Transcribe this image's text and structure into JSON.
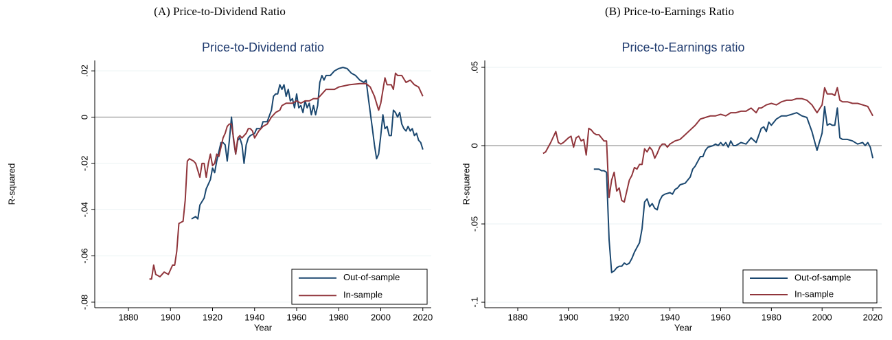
{
  "chart_data": [
    {
      "type": "line",
      "caption": "(A) Price-to-Dividend Ratio",
      "title": "Price-to-Dividend ratio",
      "x_label": "Year",
      "y_label": "R-squared",
      "grid": true,
      "refline": 0,
      "legend": "lower right",
      "xlim": [
        1864,
        2024
      ],
      "xticks": [
        1880,
        1900,
        1920,
        1940,
        1960,
        1980,
        2000,
        2020
      ],
      "ylim": [
        -0.0824,
        0.0245
      ],
      "yticks": [
        {
          "value": -0.08,
          "label": "-.08"
        },
        {
          "value": -0.06,
          "label": "-.06"
        },
        {
          "value": -0.04,
          "label": "-.04"
        },
        {
          "value": -0.02,
          "label": "-.02"
        },
        0,
        {
          "value": 0.02,
          "label": ".02"
        }
      ],
      "series": [
        {
          "name": "Out-of-sample",
          "color": "#1a476f",
          "x": [
            1910,
            1912,
            1913,
            1914,
            1916,
            1917,
            1918,
            1919,
            1920,
            1921,
            1922,
            1923,
            1924,
            1925,
            1926,
            1927,
            1928,
            1929,
            1930,
            1931,
            1932,
            1933,
            1934,
            1935,
            1936,
            1937,
            1938,
            1940,
            1941,
            1943,
            1944,
            1946,
            1948,
            1949,
            1950,
            1951,
            1952,
            1953,
            1954,
            1955,
            1956,
            1957,
            1958,
            1959,
            1960,
            1961,
            1962,
            1963,
            1964,
            1965,
            1966,
            1967,
            1968,
            1969,
            1970,
            1971,
            1972,
            1973,
            1974,
            1976,
            1978,
            1980,
            1982,
            1984,
            1986,
            1988,
            1990,
            1992,
            1993,
            1994,
            1995,
            1996,
            1997,
            1998,
            1999,
            2000,
            2001,
            2002,
            2003,
            2004,
            2005,
            2006,
            2007,
            2008,
            2009,
            2010,
            2011,
            2012,
            2013,
            2014,
            2015,
            2016,
            2017,
            2018,
            2019,
            2020
          ],
          "values": [
            -0.044,
            -0.043,
            -0.044,
            -0.038,
            -0.035,
            -0.031,
            -0.029,
            -0.027,
            -0.022,
            -0.024,
            -0.019,
            -0.015,
            -0.011,
            -0.011,
            -0.012,
            -0.019,
            -0.01,
            0.0,
            -0.01,
            -0.016,
            -0.01,
            -0.009,
            -0.012,
            -0.02,
            -0.012,
            -0.009,
            -0.008,
            -0.007,
            -0.005,
            -0.005,
            -0.002,
            -0.002,
            0.003,
            0.009,
            0.01,
            0.01,
            0.014,
            0.012,
            0.014,
            0.009,
            0.012,
            0.007,
            0.008,
            0.004,
            0.01,
            0.004,
            0.005,
            0.002,
            0.007,
            0.004,
            0.006,
            0.001,
            0.005,
            0.001,
            0.005,
            0.015,
            0.018,
            0.016,
            0.018,
            0.018,
            0.02,
            0.021,
            0.0215,
            0.021,
            0.019,
            0.018,
            0.016,
            0.015,
            0.016,
            0.009,
            0.002,
            -0.005,
            -0.012,
            -0.018,
            -0.016,
            -0.008,
            0.001,
            -0.005,
            -0.004,
            -0.008,
            -0.008,
            0.003,
            0.002,
            0.0,
            0.002,
            -0.003,
            -0.005,
            -0.006,
            -0.004,
            -0.006,
            -0.005,
            -0.008,
            -0.007,
            -0.01,
            -0.011,
            -0.014
          ]
        },
        {
          "name": "In-sample",
          "color": "#90353b",
          "x": [
            1890,
            1891,
            1892,
            1893,
            1895,
            1897,
            1899,
            1901,
            1902,
            1903,
            1904,
            1906,
            1907,
            1908,
            1909,
            1911,
            1912,
            1914,
            1915,
            1916,
            1917,
            1918,
            1919,
            1920,
            1921,
            1922,
            1923,
            1924,
            1925,
            1926,
            1927,
            1928,
            1929,
            1930,
            1931,
            1932,
            1933,
            1934,
            1936,
            1937,
            1938,
            1939,
            1940,
            1942,
            1944,
            1946,
            1948,
            1950,
            1952,
            1953,
            1955,
            1958,
            1960,
            1962,
            1964,
            1966,
            1968,
            1970,
            1972,
            1974,
            1978,
            1980,
            1985,
            1990,
            1993,
            1995,
            1997,
            1999,
            2000,
            2002,
            2003,
            2005,
            2006,
            2007,
            2008,
            2010,
            2012,
            2014,
            2016,
            2018,
            2020
          ],
          "values": [
            -0.07,
            -0.07,
            -0.064,
            -0.068,
            -0.069,
            -0.067,
            -0.068,
            -0.064,
            -0.064,
            -0.058,
            -0.046,
            -0.045,
            -0.036,
            -0.019,
            -0.018,
            -0.019,
            -0.02,
            -0.026,
            -0.02,
            -0.02,
            -0.026,
            -0.02,
            -0.016,
            -0.021,
            -0.02,
            -0.016,
            -0.017,
            -0.013,
            -0.009,
            -0.007,
            -0.004,
            -0.003,
            -0.003,
            -0.009,
            -0.016,
            -0.009,
            -0.008,
            -0.009,
            -0.007,
            -0.005,
            -0.005,
            -0.006,
            -0.009,
            -0.006,
            -0.004,
            -0.003,
            0.0,
            0.002,
            0.003,
            0.005,
            0.006,
            0.006,
            0.007,
            0.006,
            0.007,
            0.007,
            0.008,
            0.008,
            0.01,
            0.012,
            0.012,
            0.013,
            0.014,
            0.0145,
            0.0145,
            0.013,
            0.009,
            0.003,
            0.006,
            0.017,
            0.014,
            0.014,
            0.012,
            0.019,
            0.018,
            0.018,
            0.015,
            0.016,
            0.014,
            0.013,
            0.009
          ]
        }
      ]
    },
    {
      "type": "line",
      "caption": "(B) Price-to-Earnings Ratio",
      "title": "Price-to-Earnings ratio",
      "x_label": "Year",
      "y_label": "R-squared",
      "grid": true,
      "refline": 0,
      "legend": "lower right",
      "xlim": [
        1867,
        2023.5
      ],
      "xticks": [
        1880,
        1900,
        1920,
        1940,
        1960,
        1980,
        2000,
        2020
      ],
      "ylim": [
        -0.1035,
        0.0544
      ],
      "yticks": [
        {
          "value": -0.1,
          "label": "-.1"
        },
        {
          "value": -0.05,
          "label": "-.05"
        },
        0,
        {
          "value": 0.05,
          "label": ".05"
        }
      ],
      "series": [
        {
          "name": "Out-of-sample",
          "color": "#1a476f",
          "x": [
            1910,
            1912,
            1913,
            1914,
            1915,
            1916,
            1917,
            1918,
            1919,
            1920,
            1921,
            1922,
            1923,
            1924,
            1925,
            1926,
            1927,
            1928,
            1929,
            1930,
            1931,
            1932,
            1933,
            1934,
            1935,
            1936,
            1937,
            1938,
            1940,
            1941,
            1942,
            1943,
            1944,
            1946,
            1948,
            1949,
            1950,
            1951,
            1952,
            1953,
            1954,
            1955,
            1957,
            1958,
            1959,
            1960,
            1961,
            1962,
            1963,
            1964,
            1965,
            1966,
            1968,
            1970,
            1972,
            1974,
            1976,
            1977,
            1978,
            1979,
            1980,
            1982,
            1984,
            1986,
            1988,
            1990,
            1992,
            1994,
            1996,
            1998,
            2000,
            2001,
            2002,
            2003,
            2004,
            2005,
            2006,
            2007,
            2008,
            2010,
            2012,
            2014,
            2016,
            2017,
            2018,
            2019,
            2020
          ],
          "values": [
            -0.015,
            -0.015,
            -0.016,
            -0.016,
            -0.017,
            -0.06,
            -0.081,
            -0.08,
            -0.078,
            -0.077,
            -0.077,
            -0.075,
            -0.076,
            -0.075,
            -0.072,
            -0.068,
            -0.065,
            -0.062,
            -0.053,
            -0.036,
            -0.034,
            -0.039,
            -0.037,
            -0.04,
            -0.041,
            -0.035,
            -0.032,
            -0.031,
            -0.03,
            -0.031,
            -0.028,
            -0.027,
            -0.025,
            -0.024,
            -0.02,
            -0.015,
            -0.013,
            -0.01,
            -0.007,
            -0.007,
            -0.003,
            -0.001,
            0.0,
            0.001,
            0.0,
            0.002,
            0.0,
            0.002,
            -0.001,
            0.003,
            0.0,
            0.0,
            0.002,
            0.001,
            0.005,
            0.002,
            0.011,
            0.012,
            0.009,
            0.015,
            0.013,
            0.017,
            0.019,
            0.019,
            0.02,
            0.021,
            0.019,
            0.018,
            0.009,
            -0.003,
            0.008,
            0.025,
            0.013,
            0.014,
            0.013,
            0.013,
            0.024,
            0.005,
            0.004,
            0.004,
            0.003,
            0.001,
            0.002,
            0.0,
            0.002,
            -0.001,
            -0.008
          ]
        },
        {
          "name": "In-sample",
          "color": "#90353b",
          "x": [
            1890,
            1891,
            1893,
            1895,
            1896,
            1897,
            1898,
            1900,
            1901,
            1902,
            1903,
            1904,
            1905,
            1906,
            1907,
            1908,
            1909,
            1910,
            1911,
            1912,
            1913,
            1914,
            1915,
            1916,
            1917,
            1918,
            1919,
            1920,
            1921,
            1922,
            1923,
            1924,
            1925,
            1926,
            1927,
            1928,
            1929,
            1930,
            1931,
            1932,
            1933,
            1934,
            1935,
            1936,
            1937,
            1938,
            1939,
            1940,
            1942,
            1944,
            1946,
            1948,
            1950,
            1952,
            1954,
            1956,
            1958,
            1960,
            1962,
            1964,
            1966,
            1968,
            1970,
            1972,
            1974,
            1975,
            1976,
            1978,
            1980,
            1982,
            1984,
            1986,
            1988,
            1990,
            1992,
            1994,
            1996,
            1998,
            2000,
            2001,
            2002,
            2004,
            2005,
            2006,
            2007,
            2008,
            2010,
            2012,
            2014,
            2016,
            2018,
            2020
          ],
          "values": [
            -0.005,
            -0.004,
            0.002,
            0.009,
            0.002,
            0.001,
            0.002,
            0.005,
            0.006,
            -0.001,
            0.005,
            0.006,
            0.003,
            0.004,
            -0.006,
            0.011,
            0.01,
            0.008,
            0.007,
            0.007,
            0.005,
            0.003,
            0.003,
            -0.033,
            -0.022,
            -0.017,
            -0.029,
            -0.027,
            -0.035,
            -0.036,
            -0.029,
            -0.022,
            -0.019,
            -0.014,
            -0.015,
            -0.012,
            -0.012,
            -0.002,
            -0.004,
            -0.001,
            -0.003,
            -0.008,
            -0.005,
            -0.001,
            0.001,
            0.001,
            -0.001,
            0.001,
            0.003,
            0.004,
            0.007,
            0.01,
            0.013,
            0.017,
            0.018,
            0.019,
            0.019,
            0.02,
            0.019,
            0.021,
            0.021,
            0.022,
            0.022,
            0.024,
            0.021,
            0.024,
            0.024,
            0.026,
            0.027,
            0.026,
            0.028,
            0.029,
            0.029,
            0.03,
            0.03,
            0.029,
            0.026,
            0.021,
            0.026,
            0.037,
            0.033,
            0.033,
            0.032,
            0.037,
            0.029,
            0.028,
            0.028,
            0.027,
            0.027,
            0.026,
            0.025,
            0.019
          ]
        }
      ]
    }
  ]
}
